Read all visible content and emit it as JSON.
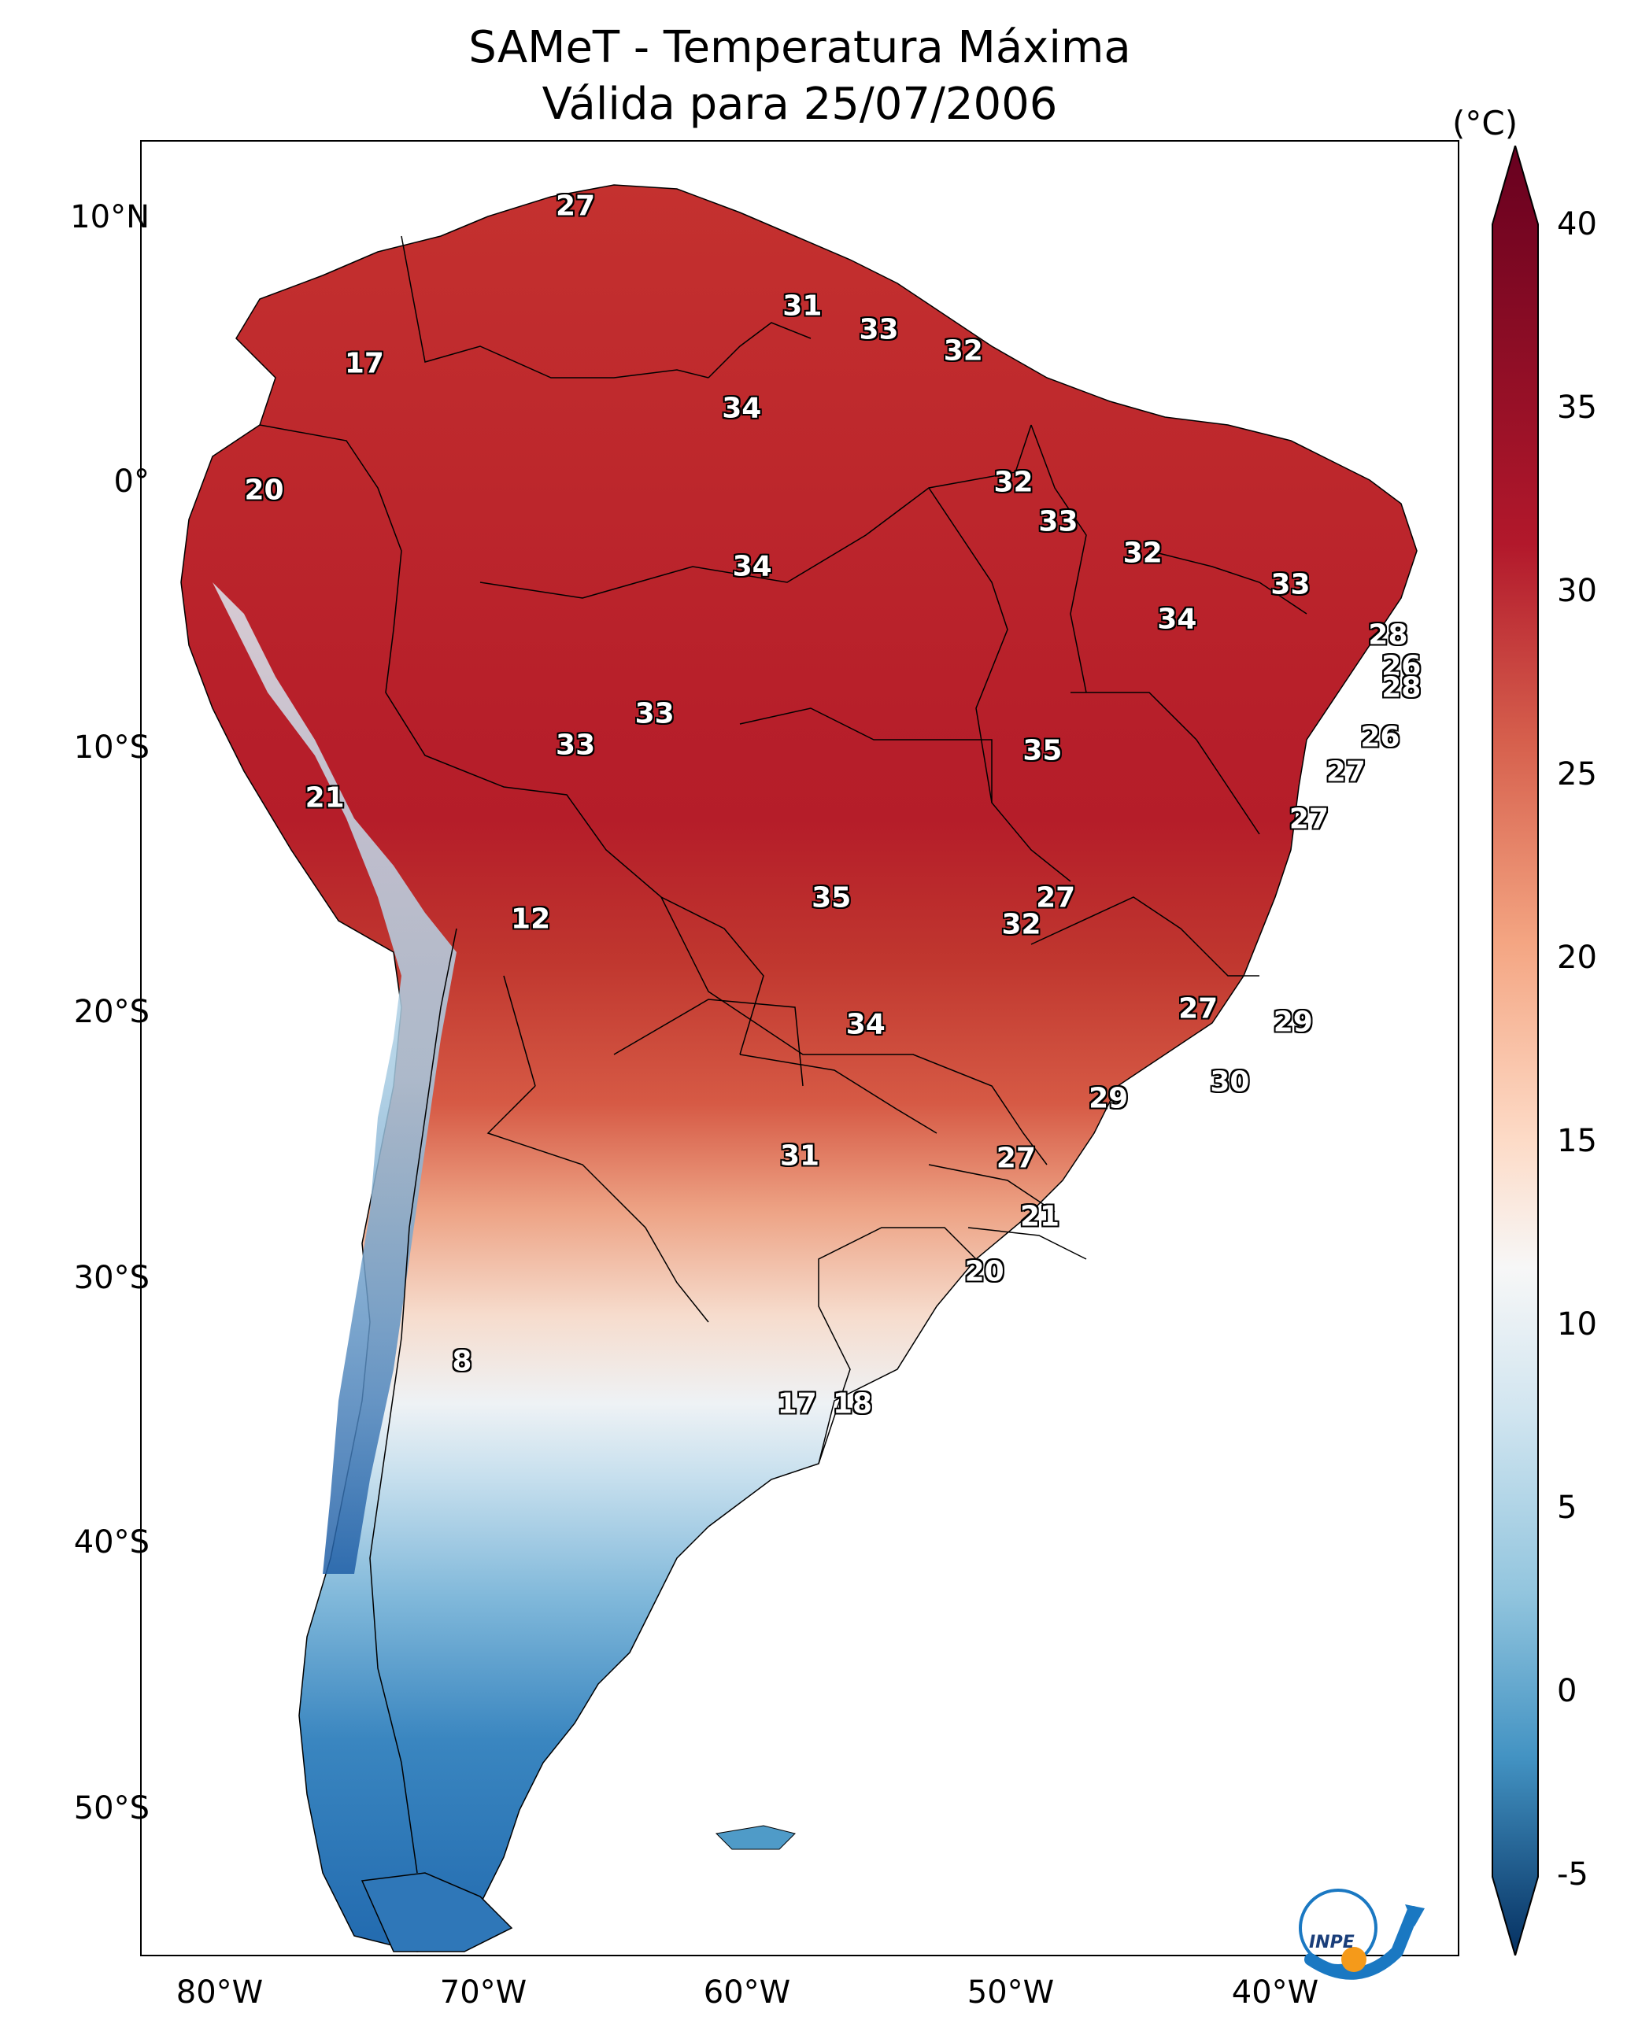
{
  "title": {
    "line1": "SAMeT - Temperatura Máxima",
    "line2": "Válida para 25/07/2006"
  },
  "axes": {
    "lat_ticks": [
      "10°N",
      "0°",
      "10°S",
      "20°S",
      "30°S",
      "40°S",
      "50°S"
    ],
    "lat_values": [
      10,
      0,
      -10,
      -20,
      -30,
      -40,
      -50
    ],
    "lon_ticks": [
      "80°W",
      "70°W",
      "60°W",
      "50°W",
      "40°W"
    ],
    "lon_values": [
      -80,
      -70,
      -60,
      -50,
      -40
    ],
    "lon_range": [
      -83,
      -33
    ],
    "lat_range": [
      -56,
      13
    ]
  },
  "colorbar": {
    "unit": "(°C)",
    "ticks": [
      "40",
      "35",
      "30",
      "25",
      "20",
      "15",
      "10",
      "5",
      "0",
      "-5"
    ],
    "range": [
      -5,
      40
    ],
    "colormap": "RdBu_r",
    "extend": "both"
  },
  "temperature_labels": [
    {
      "value": "27",
      "lon": -66.5,
      "lat": 10.5
    },
    {
      "value": "17",
      "lon": -74.5,
      "lat": 4.5
    },
    {
      "value": "20",
      "lon": -78.3,
      "lat": -0.3
    },
    {
      "value": "31",
      "lon": -57.9,
      "lat": 6.7
    },
    {
      "value": "33",
      "lon": -55.0,
      "lat": 5.8
    },
    {
      "value": "32",
      "lon": -51.8,
      "lat": 5.0
    },
    {
      "value": "34",
      "lon": -60.2,
      "lat": 2.8
    },
    {
      "value": "32",
      "lon": -49.9,
      "lat": 0.0
    },
    {
      "value": "33",
      "lon": -48.2,
      "lat": -1.5
    },
    {
      "value": "32",
      "lon": -45.0,
      "lat": -2.7
    },
    {
      "value": "33",
      "lon": -39.4,
      "lat": -3.9
    },
    {
      "value": "34",
      "lon": -59.8,
      "lat": -3.2
    },
    {
      "value": "34",
      "lon": -43.7,
      "lat": -5.2
    },
    {
      "value": "28",
      "lon": -35.7,
      "lat": -5.8
    },
    {
      "value": "26",
      "lon": -35.2,
      "lat": -7.0
    },
    {
      "value": "28",
      "lon": -35.2,
      "lat": -7.8
    },
    {
      "value": "33",
      "lon": -63.5,
      "lat": -8.8
    },
    {
      "value": "33",
      "lon": -66.5,
      "lat": -10.0
    },
    {
      "value": "35",
      "lon": -48.8,
      "lat": -10.2
    },
    {
      "value": "26",
      "lon": -36.0,
      "lat": -9.7
    },
    {
      "value": "27",
      "lon": -37.3,
      "lat": -11.0
    },
    {
      "value": "21",
      "lon": -76.0,
      "lat": -12.0
    },
    {
      "value": "27",
      "lon": -38.7,
      "lat": -12.8
    },
    {
      "value": "35",
      "lon": -56.8,
      "lat": -15.8
    },
    {
      "value": "27",
      "lon": -48.3,
      "lat": -15.8
    },
    {
      "value": "32",
      "lon": -49.6,
      "lat": -16.8
    },
    {
      "value": "12",
      "lon": -68.2,
      "lat": -16.6
    },
    {
      "value": "27",
      "lon": -42.9,
      "lat": -20.0
    },
    {
      "value": "29",
      "lon": -39.3,
      "lat": -20.5
    },
    {
      "value": "34",
      "lon": -55.5,
      "lat": -20.6
    },
    {
      "value": "30",
      "lon": -41.7,
      "lat": -22.8
    },
    {
      "value": "29",
      "lon": -46.3,
      "lat": -23.4
    },
    {
      "value": "31",
      "lon": -58.0,
      "lat": -25.6
    },
    {
      "value": "27",
      "lon": -49.8,
      "lat": -25.7
    },
    {
      "value": "21",
      "lon": -48.9,
      "lat": -27.9
    },
    {
      "value": "20",
      "lon": -51.0,
      "lat": -30.0
    },
    {
      "value": "8",
      "lon": -70.8,
      "lat": -33.4
    },
    {
      "value": "17",
      "lon": -58.1,
      "lat": -35.0
    },
    {
      "value": "18",
      "lon": -56.0,
      "lat": -35.0
    }
  ],
  "colors": {
    "hot_dark": "#8c0d25",
    "hot": "#c02a32",
    "warm": "#e37b60",
    "mild": "#f6c6ab",
    "neutral": "#f4f0ee",
    "cool": "#c2ddec",
    "cold": "#4f9bc8",
    "cold_dark": "#1d5ea6",
    "inpe_blue": "#1a78c2",
    "inpe_orange": "#f59a1a"
  },
  "logo": {
    "text": "INPE"
  }
}
